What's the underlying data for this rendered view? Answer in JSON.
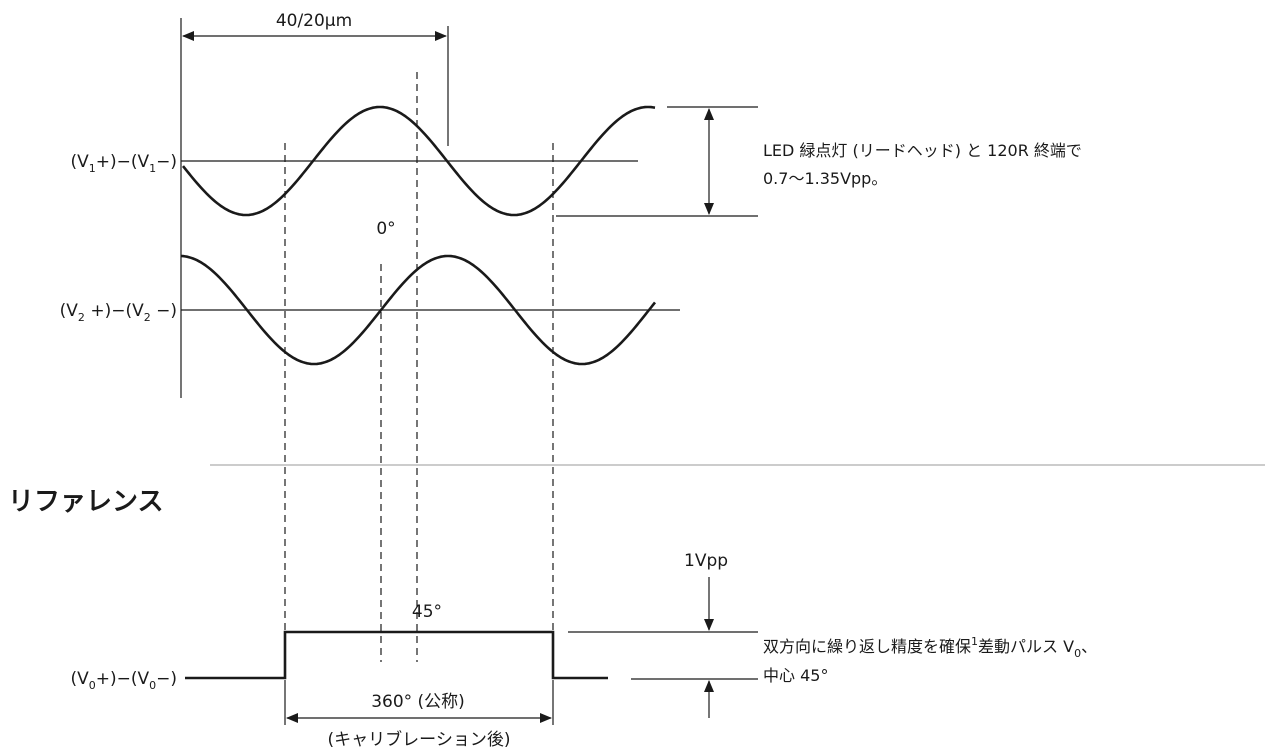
{
  "dimension_label": "40/20µm",
  "signal_v1": {
    "main": "(V",
    "sub": "1",
    "plus": "+)−(V",
    "sub2": "1",
    "end": "−)"
  },
  "signal_v2": {
    "main": "(V",
    "sub": "2",
    "plus": " +)−(V",
    "sub2": "2",
    "end": " −)"
  },
  "signal_v0": {
    "main": "(V",
    "sub": "0",
    "plus": "+)−(V",
    "sub2": "0",
    "end": "−)"
  },
  "zero_degree_label": "0°",
  "amplitude_note": {
    "line1": "LED 緑点灯 (リードヘッド) と 120R 終端で",
    "line2": "0.7〜1.35Vpp。"
  },
  "reference_heading": "リファレンス",
  "pulse_amplitude_label": "1Vpp",
  "pulse_center_label": "45°",
  "pulse_note": {
    "line1_a": "双方向に繰り返し精度を確保",
    "line1_sup": "1",
    "line1_b": "差動パルス V",
    "line1_sub": "0",
    "line1_c": "、",
    "line2": "中心 45°"
  },
  "pulse_width_label": "360° (公称)",
  "pulse_width_sublabel": "(キャリブレーション後)"
}
